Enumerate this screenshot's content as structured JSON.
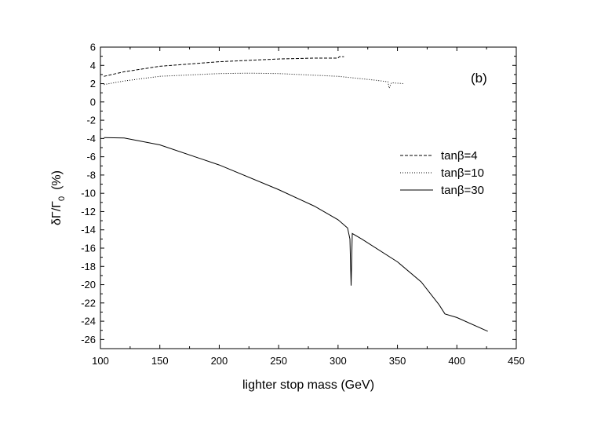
{
  "chart_data": {
    "type": "line",
    "title": "",
    "panel_label": "(b)",
    "xlabel": "lighter stop mass  (GeV)",
    "ylabel": "δΓ/Γ",
    "ylabel_subscript": "0",
    "ylabel_unit": "(%)",
    "xlim": [
      100,
      450
    ],
    "ylim": [
      -27,
      6
    ],
    "xticks": [
      100,
      150,
      200,
      250,
      300,
      350,
      400,
      450
    ],
    "yticks": [
      6,
      4,
      2,
      0,
      -2,
      -4,
      -6,
      -8,
      -10,
      -12,
      -14,
      -16,
      -18,
      -20,
      -22,
      -24,
      -26
    ],
    "grid": false,
    "legend_position": "right-middle",
    "series": [
      {
        "name": "tanβ=4",
        "style": "dashed",
        "x": [
          103,
          120,
          150,
          200,
          250,
          280,
          300,
          301,
          305
        ],
        "y": [
          2.8,
          3.3,
          3.9,
          4.4,
          4.7,
          4.8,
          4.8,
          4.95,
          4.95
        ]
      },
      {
        "name": "tanβ=10",
        "style": "dotted",
        "x": [
          103,
          120,
          150,
          200,
          225,
          250,
          300,
          330,
          342,
          343,
          345,
          355
        ],
        "y": [
          1.9,
          2.3,
          2.8,
          3.1,
          3.15,
          3.1,
          2.8,
          2.4,
          2.2,
          1.5,
          2.1,
          2.0
        ]
      },
      {
        "name": "tanβ=30",
        "style": "solid",
        "x": [
          103,
          120,
          150,
          200,
          250,
          280,
          300,
          308,
          310,
          311,
          312,
          320,
          350,
          370,
          385,
          390,
          400,
          426
        ],
        "y": [
          -3.9,
          -3.95,
          -4.7,
          -6.9,
          -9.6,
          -11.4,
          -12.9,
          -13.8,
          -15.0,
          -20.1,
          -14.4,
          -15.0,
          -17.5,
          -19.7,
          -22.2,
          -23.2,
          -23.6,
          -25.1
        ]
      }
    ]
  }
}
